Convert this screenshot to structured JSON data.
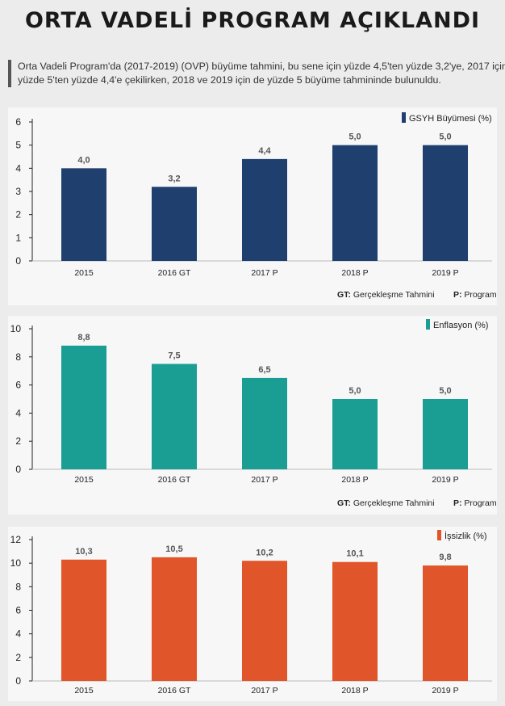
{
  "title": "ORTA VADELİ PROGRAM AÇIKLANDI",
  "intro": "Orta Vadeli Program'da (2017-2019) (OVP) büyüme tahmini, bu sene için yüzde 4,5'ten yüzde 3,2'ye, 2017 için yüzde 5'ten yüzde 4,4'e çekilirken, 2018 ve 2019 için de yüzde 5 büyüme tahmininde bulunuldu.",
  "footnote": {
    "gt_key": "GT:",
    "gt_text": "Gerçekleşme Tahmini",
    "p_key": "P:",
    "p_text": "Program"
  },
  "chart_data": [
    {
      "type": "bar",
      "legend": "GSYH Büyümesi (%)",
      "color": "#1f3f6e",
      "categories": [
        "2015",
        "2016 GT",
        "2017 P",
        "2018 P",
        "2019 P"
      ],
      "values": [
        4.0,
        3.2,
        4.4,
        5.0,
        5.0
      ],
      "value_labels": [
        "4,0",
        "3,2",
        "4,4",
        "5,0",
        "5,0"
      ],
      "yticks": [
        0,
        1,
        2,
        3,
        4,
        5,
        6
      ],
      "ylim": [
        0,
        6
      ]
    },
    {
      "type": "bar",
      "legend": "Enflasyon (%)",
      "color": "#1a9e94",
      "categories": [
        "2015",
        "2016 GT",
        "2017 P",
        "2018 P",
        "2019 P"
      ],
      "values": [
        8.8,
        7.5,
        6.5,
        5.0,
        5.0
      ],
      "value_labels": [
        "8,8",
        "7,5",
        "6,5",
        "5,0",
        "5,0"
      ],
      "yticks": [
        0,
        2,
        4,
        6,
        8,
        10
      ],
      "ylim": [
        0,
        10
      ]
    },
    {
      "type": "bar",
      "legend": "İşsizlik (%)",
      "color": "#e0552a",
      "categories": [
        "2015",
        "2016 GT",
        "2017 P",
        "2018 P",
        "2019 P"
      ],
      "values": [
        10.3,
        10.5,
        10.2,
        10.1,
        9.8
      ],
      "value_labels": [
        "10,3",
        "10,5",
        "10,2",
        "10,1",
        "9,8"
      ],
      "yticks": [
        0,
        2,
        4,
        6,
        8,
        10,
        12
      ],
      "ylim": [
        0,
        12
      ]
    }
  ]
}
